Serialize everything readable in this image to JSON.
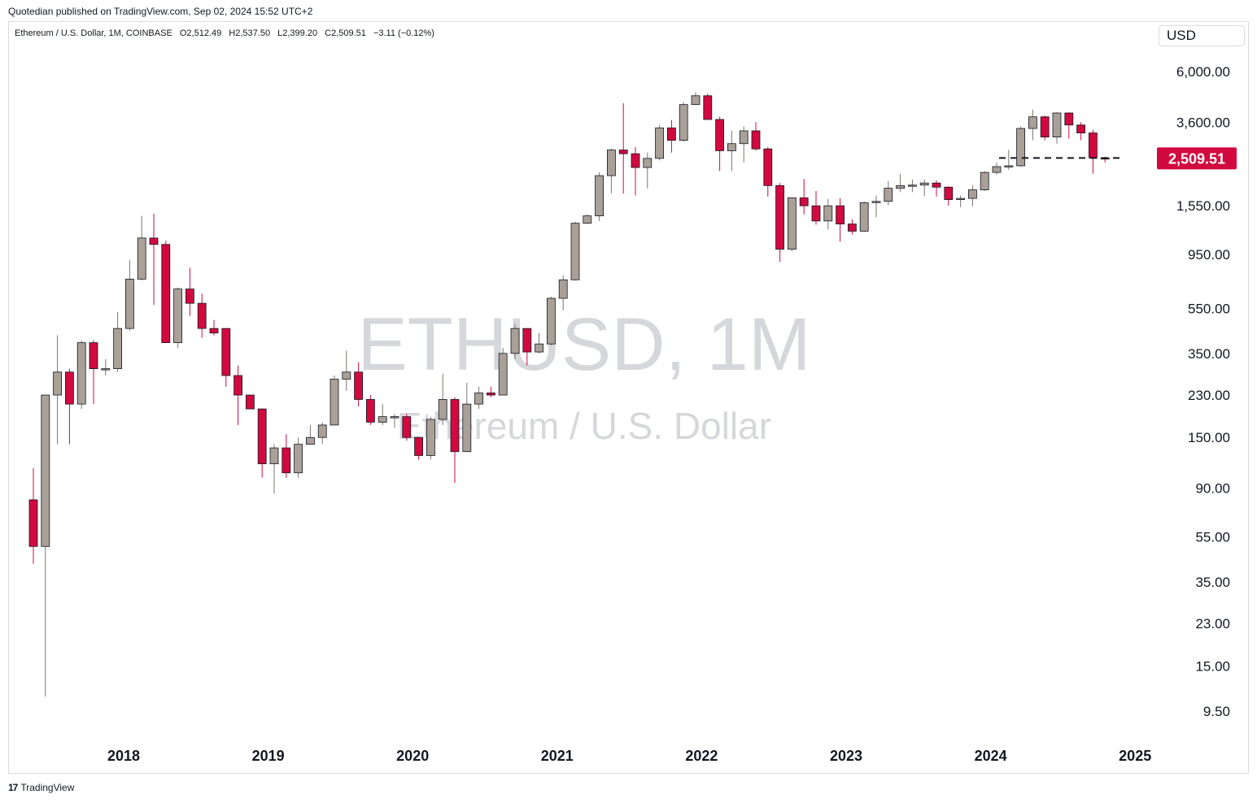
{
  "header": {
    "published": "Quotedian published on TradingView.com, Sep 02, 2024 15:52 UTC+2"
  },
  "legend": {
    "symbol": "Ethereum / U.S. Dollar, 1M, COINBASE",
    "open": "O2,512.49",
    "high": "H2,537.50",
    "low": "L2,399.20",
    "close": "C2,509.51",
    "change": "−3.11 (−0.12%)"
  },
  "currency_button": "USD",
  "watermark": {
    "line1": "ETHUSD, 1M",
    "line2": "Ethereum / U.S. Dollar"
  },
  "price_badge": "2,509.51",
  "footer": {
    "brand": "TradingView",
    "logo": "17"
  },
  "colors": {
    "up": "#a9a098",
    "down": "#d1093f",
    "text": "#131722",
    "border": "#d9dce3",
    "watermark": "#d6d7db"
  },
  "chart_data": {
    "type": "candlestick",
    "scale": "log",
    "ylim": [
      8,
      9000
    ],
    "y_ticks": [
      6000,
      3600,
      1550,
      950,
      550,
      350,
      230,
      150,
      90,
      55,
      35,
      23,
      15,
      9.5
    ],
    "y_tick_labels": [
      "6,000.00",
      "3,600.00",
      "1,550.00",
      "950.00",
      "550.00",
      "350.00",
      "230.00",
      "150.00",
      "90.00",
      "55.00",
      "35.00",
      "23.00",
      "15.00",
      "9.50"
    ],
    "x_ticks": [
      "2018",
      "2019",
      "2020",
      "2021",
      "2022",
      "2023",
      "2024",
      "2025"
    ],
    "last_price": 2509.51,
    "last_price_label": "2,509.51",
    "candles": [
      {
        "t": "2017-05",
        "o": 80,
        "h": 110,
        "l": 42,
        "c": 50
      },
      {
        "t": "2017-06",
        "o": 50,
        "h": 230,
        "l": 11,
        "c": 230
      },
      {
        "t": "2017-07",
        "o": 230,
        "h": 420,
        "l": 140,
        "c": 290
      },
      {
        "t": "2017-08",
        "o": 290,
        "h": 300,
        "l": 140,
        "c": 210
      },
      {
        "t": "2017-09",
        "o": 210,
        "h": 400,
        "l": 200,
        "c": 390
      },
      {
        "t": "2017-10",
        "o": 390,
        "h": 400,
        "l": 210,
        "c": 300
      },
      {
        "t": "2017-11",
        "o": 300,
        "h": 330,
        "l": 280,
        "c": 300
      },
      {
        "t": "2017-12",
        "o": 300,
        "h": 530,
        "l": 290,
        "c": 450
      },
      {
        "t": "2018-01",
        "o": 450,
        "h": 900,
        "l": 440,
        "c": 740
      },
      {
        "t": "2018-02",
        "o": 740,
        "h": 1400,
        "l": 730,
        "c": 1120
      },
      {
        "t": "2018-03",
        "o": 1120,
        "h": 1430,
        "l": 570,
        "c": 1050
      },
      {
        "t": "2018-04",
        "o": 1050,
        "h": 1090,
        "l": 390,
        "c": 390
      },
      {
        "t": "2018-05",
        "o": 390,
        "h": 680,
        "l": 370,
        "c": 670
      },
      {
        "t": "2018-06",
        "o": 670,
        "h": 830,
        "l": 510,
        "c": 580
      },
      {
        "t": "2018-07",
        "o": 580,
        "h": 640,
        "l": 410,
        "c": 450
      },
      {
        "t": "2018-08",
        "o": 450,
        "h": 490,
        "l": 420,
        "c": 430
      },
      {
        "t": "2018-09",
        "o": 450,
        "h": 450,
        "l": 250,
        "c": 280
      },
      {
        "t": "2018-10",
        "o": 280,
        "h": 310,
        "l": 170,
        "c": 230
      },
      {
        "t": "2018-11",
        "o": 230,
        "h": 230,
        "l": 200,
        "c": 200
      },
      {
        "t": "2018-12",
        "o": 200,
        "h": 200,
        "l": 100,
        "c": 115
      },
      {
        "t": "2019-01",
        "o": 115,
        "h": 140,
        "l": 85,
        "c": 135
      },
      {
        "t": "2019-02",
        "o": 135,
        "h": 155,
        "l": 100,
        "c": 105
      },
      {
        "t": "2019-03",
        "o": 105,
        "h": 150,
        "l": 100,
        "c": 140
      },
      {
        "t": "2019-04",
        "o": 140,
        "h": 170,
        "l": 140,
        "c": 150
      },
      {
        "t": "2019-05",
        "o": 150,
        "h": 175,
        "l": 140,
        "c": 170
      },
      {
        "t": "2019-06",
        "o": 170,
        "h": 280,
        "l": 170,
        "c": 270
      },
      {
        "t": "2019-07",
        "o": 270,
        "h": 360,
        "l": 240,
        "c": 290
      },
      {
        "t": "2019-08",
        "o": 290,
        "h": 320,
        "l": 205,
        "c": 220
      },
      {
        "t": "2019-09",
        "o": 220,
        "h": 230,
        "l": 170,
        "c": 175
      },
      {
        "t": "2019-10",
        "o": 175,
        "h": 210,
        "l": 170,
        "c": 185
      },
      {
        "t": "2019-11",
        "o": 185,
        "h": 190,
        "l": 165,
        "c": 185
      },
      {
        "t": "2019-12",
        "o": 185,
        "h": 190,
        "l": 145,
        "c": 150
      },
      {
        "t": "2020-01",
        "o": 150,
        "h": 150,
        "l": 120,
        "c": 125
      },
      {
        "t": "2020-02",
        "o": 125,
        "h": 185,
        "l": 120,
        "c": 180
      },
      {
        "t": "2020-03",
        "o": 180,
        "h": 285,
        "l": 170,
        "c": 220
      },
      {
        "t": "2020-04",
        "o": 220,
        "h": 225,
        "l": 95,
        "c": 130
      },
      {
        "t": "2020-05",
        "o": 130,
        "h": 260,
        "l": 130,
        "c": 210
      },
      {
        "t": "2020-06",
        "o": 210,
        "h": 250,
        "l": 200,
        "c": 235
      },
      {
        "t": "2020-07",
        "o": 235,
        "h": 250,
        "l": 225,
        "c": 230
      },
      {
        "t": "2020-08",
        "o": 230,
        "h": 370,
        "l": 230,
        "c": 350
      },
      {
        "t": "2020-09",
        "o": 350,
        "h": 470,
        "l": 330,
        "c": 450
      },
      {
        "t": "2020-10",
        "o": 450,
        "h": 450,
        "l": 310,
        "c": 355
      },
      {
        "t": "2020-11",
        "o": 355,
        "h": 430,
        "l": 350,
        "c": 385
      },
      {
        "t": "2020-12",
        "o": 385,
        "h": 620,
        "l": 380,
        "c": 610
      },
      {
        "t": "2021-01",
        "o": 610,
        "h": 770,
        "l": 540,
        "c": 735
      },
      {
        "t": "2021-02",
        "o": 735,
        "h": 1320,
        "l": 730,
        "c": 1300
      },
      {
        "t": "2021-03",
        "o": 1300,
        "h": 1420,
        "l": 1290,
        "c": 1400
      },
      {
        "t": "2021-04",
        "o": 1400,
        "h": 2170,
        "l": 1330,
        "c": 2100
      },
      {
        "t": "2021-05",
        "o": 2100,
        "h": 2760,
        "l": 1760,
        "c": 2720
      },
      {
        "t": "2021-06",
        "o": 2720,
        "h": 4360,
        "l": 1750,
        "c": 2620
      },
      {
        "t": "2021-07",
        "o": 2620,
        "h": 2800,
        "l": 1720,
        "c": 2280
      },
      {
        "t": "2021-08",
        "o": 2280,
        "h": 2650,
        "l": 1850,
        "c": 2500
      },
      {
        "t": "2021-09",
        "o": 2500,
        "h": 3500,
        "l": 2450,
        "c": 3400
      },
      {
        "t": "2021-10",
        "o": 3400,
        "h": 3680,
        "l": 2650,
        "c": 3000
      },
      {
        "t": "2021-11",
        "o": 3000,
        "h": 4400,
        "l": 2950,
        "c": 4300
      },
      {
        "t": "2021-12",
        "o": 4300,
        "h": 4870,
        "l": 4270,
        "c": 4700
      },
      {
        "t": "2022-01",
        "o": 4700,
        "h": 4800,
        "l": 3700,
        "c": 3700
      },
      {
        "t": "2022-02",
        "o": 3700,
        "h": 3800,
        "l": 2200,
        "c": 2700
      },
      {
        "t": "2022-03",
        "o": 2700,
        "h": 3300,
        "l": 2200,
        "c": 2900
      },
      {
        "t": "2022-04",
        "o": 2900,
        "h": 3450,
        "l": 2400,
        "c": 3300
      },
      {
        "t": "2022-05",
        "o": 3300,
        "h": 3600,
        "l": 2700,
        "c": 2750
      },
      {
        "t": "2022-06",
        "o": 2750,
        "h": 2800,
        "l": 1700,
        "c": 1900
      },
      {
        "t": "2022-07",
        "o": 1900,
        "h": 1950,
        "l": 880,
        "c": 1000
      },
      {
        "t": "2022-08",
        "o": 1000,
        "h": 1680,
        "l": 980,
        "c": 1680
      },
      {
        "t": "2022-09",
        "o": 1680,
        "h": 2030,
        "l": 1420,
        "c": 1550
      },
      {
        "t": "2022-10",
        "o": 1550,
        "h": 1800,
        "l": 1280,
        "c": 1330
      },
      {
        "t": "2022-11",
        "o": 1330,
        "h": 1660,
        "l": 1220,
        "c": 1550
      },
      {
        "t": "2022-12",
        "o": 1550,
        "h": 1670,
        "l": 1080,
        "c": 1290
      },
      {
        "t": "2023-01",
        "o": 1290,
        "h": 1350,
        "l": 1160,
        "c": 1200
      },
      {
        "t": "2023-02",
        "o": 1200,
        "h": 1620,
        "l": 1190,
        "c": 1600
      },
      {
        "t": "2023-03",
        "o": 1600,
        "h": 1720,
        "l": 1380,
        "c": 1620
      },
      {
        "t": "2023-04",
        "o": 1620,
        "h": 1990,
        "l": 1560,
        "c": 1850
      },
      {
        "t": "2023-05",
        "o": 1850,
        "h": 2140,
        "l": 1780,
        "c": 1900
      },
      {
        "t": "2023-06",
        "o": 1900,
        "h": 2020,
        "l": 1780,
        "c": 1910
      },
      {
        "t": "2023-07",
        "o": 1910,
        "h": 2020,
        "l": 1710,
        "c": 1950
      },
      {
        "t": "2023-08",
        "o": 1950,
        "h": 2000,
        "l": 1700,
        "c": 1870
      },
      {
        "t": "2023-09",
        "o": 1870,
        "h": 1890,
        "l": 1550,
        "c": 1650
      },
      {
        "t": "2023-10",
        "o": 1650,
        "h": 1720,
        "l": 1530,
        "c": 1670
      },
      {
        "t": "2023-11",
        "o": 1670,
        "h": 1910,
        "l": 1540,
        "c": 1820
      },
      {
        "t": "2023-12",
        "o": 1820,
        "h": 2200,
        "l": 1800,
        "c": 2170
      },
      {
        "t": "2024-01",
        "o": 2170,
        "h": 2400,
        "l": 2120,
        "c": 2300
      },
      {
        "t": "2024-02",
        "o": 2300,
        "h": 2720,
        "l": 2230,
        "c": 2320
      },
      {
        "t": "2024-03",
        "o": 2320,
        "h": 3440,
        "l": 2300,
        "c": 3380
      },
      {
        "t": "2024-04",
        "o": 3380,
        "h": 4090,
        "l": 3000,
        "c": 3800
      },
      {
        "t": "2024-05",
        "o": 3800,
        "h": 3850,
        "l": 3000,
        "c": 3100
      },
      {
        "t": "2024-06",
        "o": 3100,
        "h": 3980,
        "l": 2900,
        "c": 3950
      },
      {
        "t": "2024-07",
        "o": 3950,
        "h": 3980,
        "l": 3050,
        "c": 3500
      },
      {
        "t": "2024-08",
        "o": 3500,
        "h": 3600,
        "l": 3000,
        "c": 3230
      },
      {
        "t": "2024-09",
        "o": 3230,
        "h": 3330,
        "l": 2140,
        "c": 2512
      },
      {
        "t": "2024-10",
        "o": 2512.49,
        "h": 2537.5,
        "l": 2399.2,
        "c": 2509.51
      }
    ]
  }
}
